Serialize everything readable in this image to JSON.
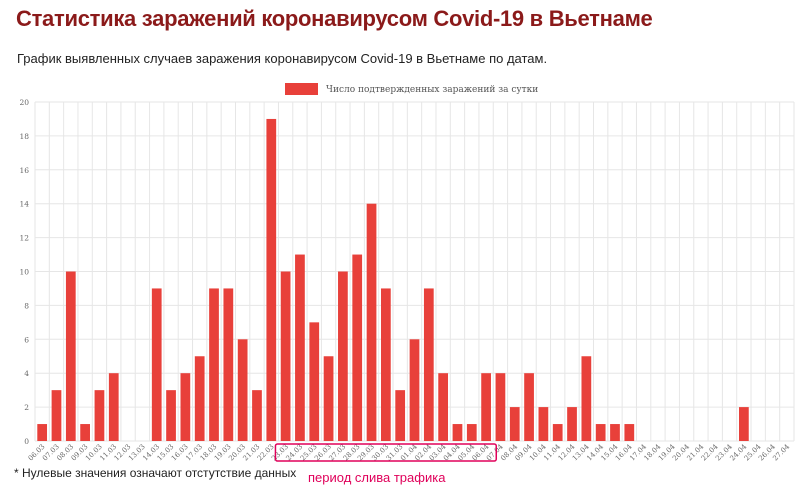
{
  "header": {
    "title": "Статистика заражений коронавирусом Covid-19 в Вьетнаме",
    "subtitle": "График выявленных случаев заражения коронавирусом Covid-19 в Вьетнаме по датам."
  },
  "footnote": "* Нулевые значения означают отстутствие данных",
  "highlight": {
    "label": "период слива трафика",
    "from": "23.03",
    "to": "06.04",
    "color": "#e0005a"
  },
  "colors": {
    "bar": "#e8403a",
    "grid": "#e6e6e6",
    "axis_text": "#666666"
  },
  "chart_data": {
    "type": "bar",
    "categories": [
      "06.03",
      "07.03",
      "08.03",
      "09.03",
      "10.03",
      "11.03",
      "12.03",
      "13.03",
      "14.03",
      "15.03",
      "16.03",
      "17.03",
      "18.03",
      "19.03",
      "20.03",
      "21.03",
      "22.03",
      "23.03",
      "24.03",
      "25.03",
      "26.03",
      "27.03",
      "28.03",
      "29.03",
      "30.03",
      "31.03",
      "01.04",
      "02.04",
      "03.04",
      "04.04",
      "05.04",
      "06.04",
      "07.04",
      "08.04",
      "09.04",
      "10.04",
      "11.04",
      "12.04",
      "13.04",
      "14.04",
      "15.04",
      "16.04",
      "17.04",
      "18.04",
      "19.04",
      "20.04",
      "21.04",
      "22.04",
      "23.04",
      "24.04",
      "25.04",
      "26.04",
      "27.04"
    ],
    "series": [
      {
        "name": "Число подтвержденных заражений за сутки",
        "values": [
          1,
          3,
          10,
          1,
          3,
          4,
          0,
          0,
          9,
          3,
          4,
          5,
          9,
          9,
          6,
          3,
          19,
          10,
          11,
          7,
          5,
          10,
          11,
          14,
          9,
          3,
          6,
          9,
          4,
          1,
          1,
          4,
          4,
          2,
          4,
          2,
          1,
          2,
          5,
          1,
          1,
          1,
          0,
          0,
          0,
          0,
          0,
          0,
          0,
          2,
          0,
          0,
          0
        ]
      }
    ],
    "ylim": [
      0,
      20
    ],
    "yticks": [
      0,
      2,
      4,
      6,
      8,
      10,
      12,
      14,
      16,
      18,
      20
    ],
    "grid": true,
    "legend": "top-center"
  }
}
